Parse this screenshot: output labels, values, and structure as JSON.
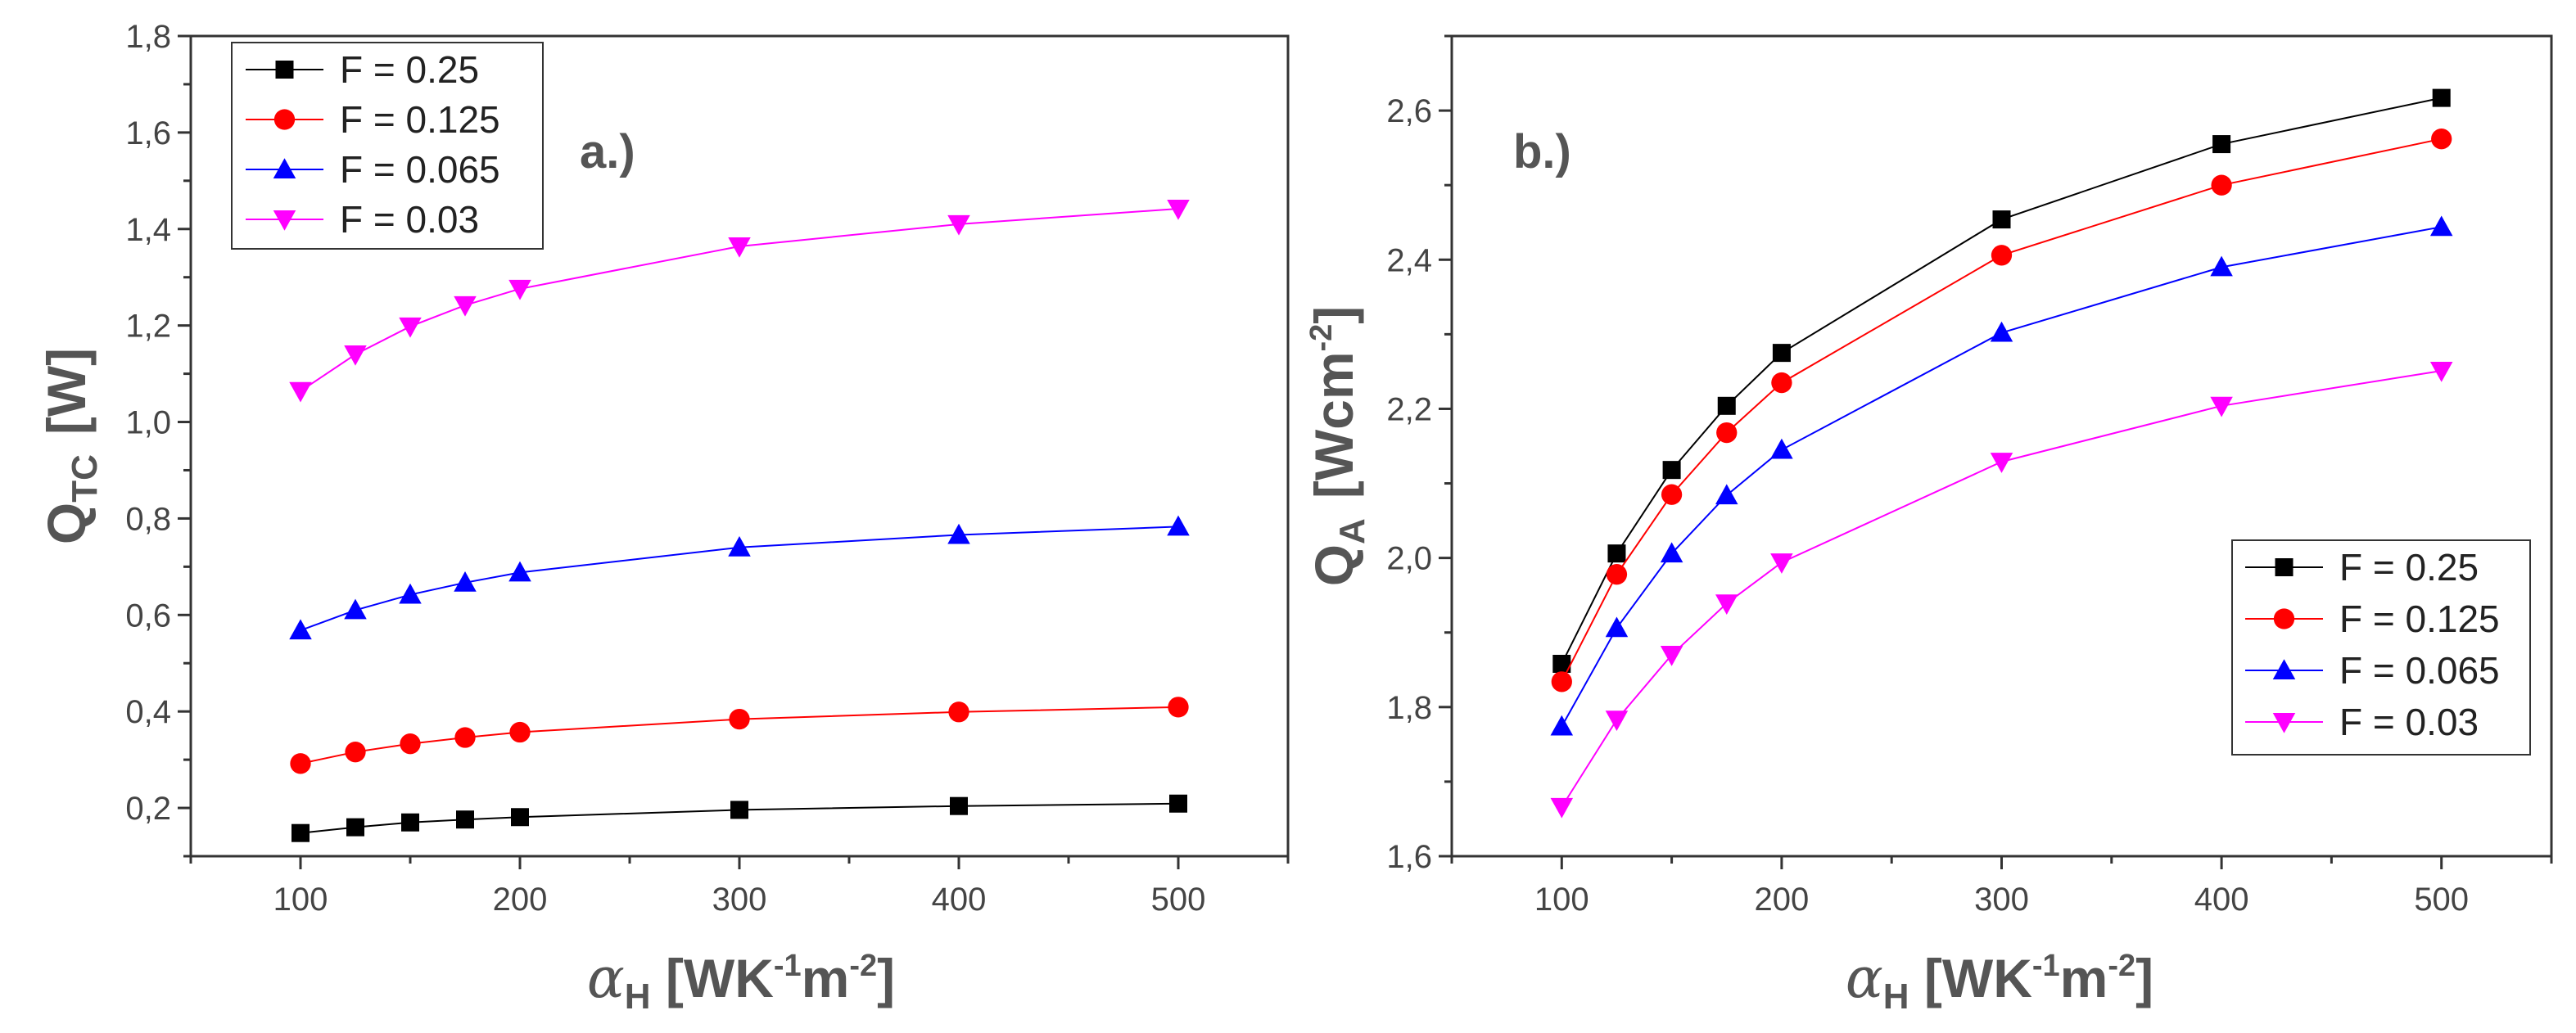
{
  "chart_data": [
    {
      "type": "line",
      "panel_label": "a.)",
      "x": [
        100,
        125,
        150,
        175,
        200,
        300,
        400,
        500
      ],
      "xticks": [
        100,
        200,
        300,
        400,
        500
      ],
      "xlim": [
        50,
        550
      ],
      "ylim": [
        0.1,
        1.8
      ],
      "yticks": [
        "0,2",
        "0,4",
        "0,6",
        "0,8",
        "1,0",
        "1,2",
        "1,4",
        "1,6",
        "1,8"
      ],
      "ytick_values": [
        0.2,
        0.4,
        0.6,
        0.8,
        1.0,
        1.2,
        1.4,
        1.6,
        1.8
      ],
      "xlabel": {
        "symbol": "α",
        "sub": "H",
        "unit_a": " [WK",
        "sup1": "-1",
        "unit_b": "m",
        "sup2": "-2",
        "unit_c": "]"
      },
      "ylabel": {
        "main": "Q",
        "sub": "TC",
        "unit": "[W]"
      },
      "legend_position": "top-left",
      "series": [
        {
          "name": "F = 0.25",
          "color": "#000000",
          "marker": "square",
          "values": [
            0.148,
            0.16,
            0.17,
            0.176,
            0.181,
            0.196,
            0.204,
            0.209
          ]
        },
        {
          "name": "F = 0.125",
          "color": "#ff0000",
          "marker": "circle",
          "values": [
            0.292,
            0.316,
            0.333,
            0.346,
            0.357,
            0.384,
            0.399,
            0.409
          ]
        },
        {
          "name": "F = 0.065",
          "color": "#0000ff",
          "marker": "triangle-up",
          "values": [
            0.568,
            0.61,
            0.642,
            0.667,
            0.688,
            0.74,
            0.766,
            0.783
          ]
        },
        {
          "name": "F = 0.03",
          "color": "#ff00ff",
          "marker": "triangle-down",
          "values": [
            1.064,
            1.14,
            1.198,
            1.242,
            1.276,
            1.364,
            1.41,
            1.442
          ]
        }
      ]
    },
    {
      "type": "line",
      "panel_label": "b.)",
      "x": [
        100,
        125,
        150,
        175,
        200,
        300,
        400,
        500
      ],
      "xticks": [
        100,
        200,
        300,
        400,
        500
      ],
      "xlim": [
        50,
        550
      ],
      "ylim": [
        1.6,
        2.7
      ],
      "yticks": [
        "1,6",
        "1,8",
        "2,0",
        "2,2",
        "2,4",
        "2,6"
      ],
      "ytick_values": [
        1.6,
        1.8,
        2.0,
        2.2,
        2.4,
        2.6
      ],
      "xlabel": {
        "symbol": "α",
        "sub": "H",
        "unit_a": " [WK",
        "sup1": "-1",
        "unit_b": "m",
        "sup2": "-2",
        "unit_c": "]"
      },
      "ylabel": {
        "main": "Q",
        "sub": "A",
        "unit_a": "[Wcm",
        "sup": "-2",
        "unit_b": "]"
      },
      "legend_position": "bottom-right",
      "series": [
        {
          "name": "F = 0.25",
          "color": "#000000",
          "marker": "square",
          "values": [
            1.858,
            2.006,
            2.118,
            2.204,
            2.275,
            2.454,
            2.555,
            2.617
          ]
        },
        {
          "name": "F = 0.125",
          "color": "#ff0000",
          "marker": "circle",
          "values": [
            1.834,
            1.978,
            2.085,
            2.168,
            2.235,
            2.406,
            2.5,
            2.562
          ]
        },
        {
          "name": "F = 0.065",
          "color": "#0000ff",
          "marker": "triangle-up",
          "values": [
            1.774,
            1.906,
            2.006,
            2.084,
            2.145,
            2.302,
            2.39,
            2.444
          ]
        },
        {
          "name": "F = 0.03",
          "color": "#ff00ff",
          "marker": "triangle-down",
          "values": [
            1.666,
            1.783,
            1.87,
            1.939,
            1.994,
            2.129,
            2.204,
            2.251
          ]
        }
      ]
    }
  ]
}
